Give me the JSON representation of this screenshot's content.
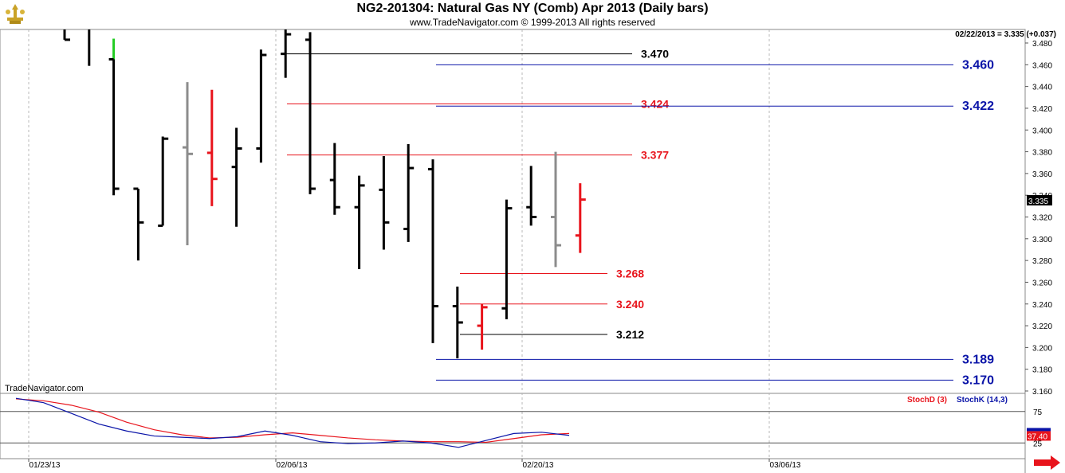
{
  "header": {
    "title": "NG2-201304:  Natural Gas NY (Comb) Apr 2013  (Daily bars)",
    "subtitle": "www.TradeNavigator.com © 1999-2013 All rights reserved",
    "readout": "02/22/2013 = 3.335 (+0.037)",
    "watermark": "TradeNavigator.com"
  },
  "chart_data": [
    {
      "type": "ohlc",
      "title": "NG2-201304:  Natural Gas NY (Comb) Apr 2013  (Daily bars)",
      "ylim": [
        3.16,
        3.48
      ],
      "y_ticks": [
        "3.480",
        "3.460",
        "3.440",
        "3.420",
        "3.400",
        "3.380",
        "3.360",
        "3.340",
        "3.320",
        "3.300",
        "3.280",
        "3.260",
        "3.240",
        "3.220",
        "3.200",
        "3.180",
        "3.160"
      ],
      "x_ticks": [
        "01/23/13",
        "02/06/13",
        "02/20/13",
        "03/06/13"
      ],
      "last_price": "3.335",
      "colors": {
        "up": "#000000",
        "gray": "#8c8c8c",
        "red": "#e8141c",
        "green": "#22cc22"
      },
      "bars": [
        {
          "idx": 0,
          "open": null,
          "high": 3.51,
          "low": 3.483,
          "close": 3.483,
          "color": "black"
        },
        {
          "idx": 1,
          "open": null,
          "high": 3.5,
          "low": 3.459,
          "close": null,
          "color": "black"
        },
        {
          "idx": 2,
          "open": null,
          "high": 3.484,
          "low": 3.465,
          "close": null,
          "color": "green"
        },
        {
          "idx": 2,
          "open": 3.465,
          "high": 3.465,
          "low": 3.34,
          "close": 3.346,
          "color": "black"
        },
        {
          "idx": 3,
          "open": 3.346,
          "high": 3.346,
          "low": 3.28,
          "close": 3.315,
          "color": "black"
        },
        {
          "idx": 4,
          "open": 3.312,
          "high": 3.394,
          "low": 3.312,
          "close": 3.392,
          "color": "black"
        },
        {
          "idx": 5,
          "open": 3.384,
          "high": 3.444,
          "low": 3.294,
          "close": 3.378,
          "color": "gray"
        },
        {
          "idx": 6,
          "open": 3.379,
          "high": 3.437,
          "low": 3.33,
          "close": 3.355,
          "color": "red"
        },
        {
          "idx": 7,
          "open": 3.366,
          "high": 3.402,
          "low": 3.311,
          "close": 3.383,
          "color": "black"
        },
        {
          "idx": 8,
          "open": 3.383,
          "high": 3.474,
          "low": 3.37,
          "close": 3.469,
          "color": "black"
        },
        {
          "idx": 9,
          "open": 3.47,
          "high": 3.51,
          "low": 3.448,
          "close": 3.488,
          "color": "black"
        },
        {
          "idx": 10,
          "open": 3.483,
          "high": 3.49,
          "low": 3.341,
          "close": 3.346,
          "color": "black"
        },
        {
          "idx": 11,
          "open": 3.354,
          "high": 3.388,
          "low": 3.322,
          "close": 3.329,
          "color": "black"
        },
        {
          "idx": 12,
          "open": 3.329,
          "high": 3.358,
          "low": 3.272,
          "close": 3.349,
          "color": "black"
        },
        {
          "idx": 13,
          "open": 3.345,
          "high": 3.376,
          "low": 3.29,
          "close": 3.315,
          "color": "black"
        },
        {
          "idx": 14,
          "open": 3.309,
          "high": 3.387,
          "low": 3.297,
          "close": 3.365,
          "color": "black"
        },
        {
          "idx": 15,
          "open": 3.364,
          "high": 3.373,
          "low": 3.204,
          "close": 3.238,
          "color": "black"
        },
        {
          "idx": 16,
          "open": 3.238,
          "high": 3.256,
          "low": 3.19,
          "close": 3.223,
          "color": "black"
        },
        {
          "idx": 17,
          "open": 3.22,
          "high": 3.24,
          "low": 3.198,
          "close": 3.237,
          "color": "red"
        },
        {
          "idx": 18,
          "open": 3.236,
          "high": 3.336,
          "low": 3.226,
          "close": 3.328,
          "color": "black"
        },
        {
          "idx": 19,
          "open": 3.329,
          "high": 3.367,
          "low": 3.312,
          "close": 3.32,
          "color": "black"
        },
        {
          "idx": 20,
          "open": 3.32,
          "high": 3.38,
          "low": 3.274,
          "close": 3.294,
          "color": "gray"
        },
        {
          "idx": 21,
          "open": 3.303,
          "high": 3.351,
          "low": 3.287,
          "close": 3.336,
          "color": "red"
        }
      ],
      "levels": [
        {
          "value": 3.47,
          "label": "3.470",
          "color": "#000000"
        },
        {
          "value": 3.46,
          "label": "3.460",
          "color": "#0a14a8"
        },
        {
          "value": 3.424,
          "label": "3.424",
          "color": "#e8141c"
        },
        {
          "value": 3.422,
          "label": "3.422",
          "color": "#0a14a8"
        },
        {
          "value": 3.377,
          "label": "3.377",
          "color": "#e8141c"
        },
        {
          "value": 3.268,
          "label": "3.268",
          "color": "#e8141c"
        },
        {
          "value": 3.24,
          "label": "3.240",
          "color": "#e8141c"
        },
        {
          "value": 3.212,
          "label": "3.212",
          "color": "#000000"
        },
        {
          "value": 3.189,
          "label": "3.189",
          "color": "#0a14a8"
        },
        {
          "value": 3.17,
          "label": "3.170",
          "color": "#0a14a8"
        }
      ]
    },
    {
      "type": "line",
      "title": "",
      "series": [
        {
          "name": "StochD (3)",
          "color": "#e8141c",
          "values": [
            95,
            92,
            85,
            74,
            58,
            46,
            38,
            33,
            34,
            38,
            41,
            37,
            33,
            30,
            28,
            27,
            27,
            26,
            32,
            38,
            40
          ]
        },
        {
          "name": "StochK (14,3)",
          "color": "#0a14a8",
          "values": [
            96,
            89,
            72,
            55,
            44,
            36,
            34,
            32,
            35,
            44,
            37,
            27,
            24,
            25,
            28,
            25,
            18,
            29,
            40,
            42,
            37
          ]
        }
      ],
      "ylim": [
        0,
        100
      ],
      "y_ticks": [
        "75",
        "25"
      ],
      "last_value": "37.40"
    }
  ]
}
